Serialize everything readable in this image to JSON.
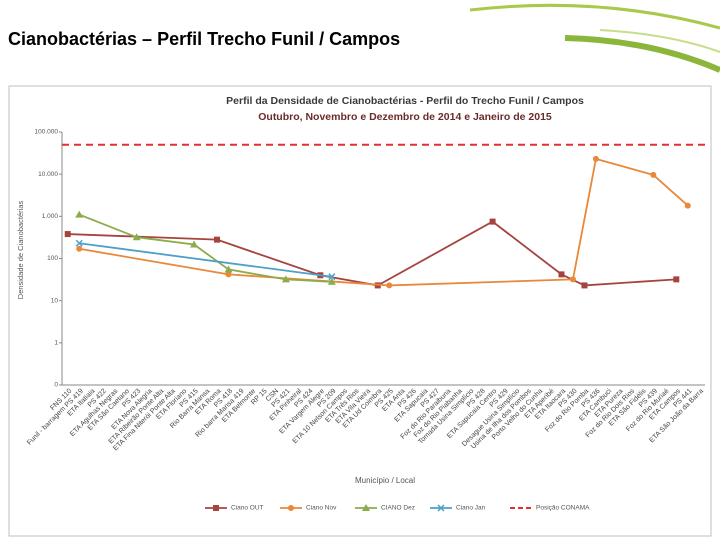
{
  "slide_title": "Cianobactérias – Perfil Trecho Funil / Campos",
  "chart_data": {
    "type": "line",
    "title": "Perfil da Densidade de Cianobactérias - Perfil do Trecho Funil / Campos",
    "subtitle": "Outubro, Novembro e Dezembro de 2014 e Janeiro de 2015",
    "x_label": "Município / Local",
    "y_label": "Densidade de Cianobactérias",
    "log_scale": true,
    "grid": false,
    "legend": "bottom",
    "categories": [
      "FNS 110",
      "Funil - barragem PS 419",
      "ETA Itatiaia",
      "PS 422",
      "ETA Agulhas Negras",
      "ETA São Caetano",
      "PS 423",
      "ETA Nova Alegria",
      "ETA Ribeirão Ponte Alta",
      "ETA Fina Niterói Ponte Alta",
      "ETA Floriano",
      "PS 415",
      "Rio Barra Mansa",
      "ETA Roma",
      "PS 418",
      "Rio barra Mansa 419",
      "ETA Belmonte",
      "RP 15",
      "CSN",
      "PS 421",
      "ETA Pinheiral",
      "PS 424",
      "ETA Vargem Alegre",
      "PS 209",
      "ETA 10 Nelson Campos",
      "ETA Três Rios",
      "ETA Vila Vieira",
      "ETA Ud Coimbra",
      "PS 425",
      "ETA Anta",
      "PS 426",
      "ETA Sapucaia",
      "PS 427",
      "Foz do Rio Paraibuna",
      "Foz do Rio Piabanha",
      "Tomada Usina Simplício",
      "PS 428",
      "ETA Sapucaia Centro",
      "PS 429",
      "Desague Usina Simplício",
      "Usina de Ilha dos Pombos",
      "Porto Velho do Cunha",
      "ETA Aperibé",
      "ETA Itaocara",
      "PS 430",
      "Foz do Rio Pomba",
      "PS 436",
      "ETA Cambuci",
      "ETA Pureza",
      "Foz do Rio Dois Rios",
      "ETA São Fidélis",
      "PS 439",
      "Foz do Rio Muriaé",
      "ETA Campos",
      "PS 441",
      "ETA São João da Barra"
    ],
    "series": [
      {
        "name": "Ciano OUT",
        "color": "#a5443f",
        "x": [
          "FNS 110",
          "ETA Roma",
          "ETA Vargem Alegre",
          "ETA Ud Coimbra",
          "ETA Sapucaia Centro",
          "ETA Itaocara",
          "Foz do Rio Pomba",
          "ETA Campos"
        ],
        "values": [
          380,
          280,
          40,
          23,
          750,
          42,
          23,
          32
        ]
      },
      {
        "name": "Ciano Nov",
        "color": "#e8883a",
        "x": [
          "Funil - barragem PS 419",
          "PS 418",
          "PS 425",
          "PS 430",
          "PS 436",
          "PS 439",
          "PS 441"
        ],
        "values": [
          170,
          42,
          23,
          32,
          23000,
          9600,
          1800
        ]
      },
      {
        "name": "CIANO Dez",
        "color": "#8cab4a",
        "x": [
          "Funil - barragem PS 419",
          "PS 423",
          "PS 415",
          "PS 418",
          "PS 421",
          "PS 209"
        ],
        "values": [
          1100,
          320,
          215,
          55,
          32,
          28
        ]
      },
      {
        "name": "Ciano Jan",
        "color": "#4ea0c8",
        "x": [
          "Funil - barragem PS 419",
          "PS 209"
        ],
        "values": [
          230,
          37
        ]
      }
    ],
    "reference_line": {
      "name": "Posição CONAMA",
      "value": 50000,
      "color": "#e03030"
    },
    "ylim": [
      0.1,
      100000
    ],
    "yticks": [
      {
        "value": 0.1,
        "label": "0"
      },
      1,
      10,
      100,
      {
        "value": 1000,
        "label": "1.000"
      },
      {
        "value": 10000,
        "label": "10.000"
      },
      {
        "value": 100000,
        "label": "100.000"
      }
    ]
  }
}
